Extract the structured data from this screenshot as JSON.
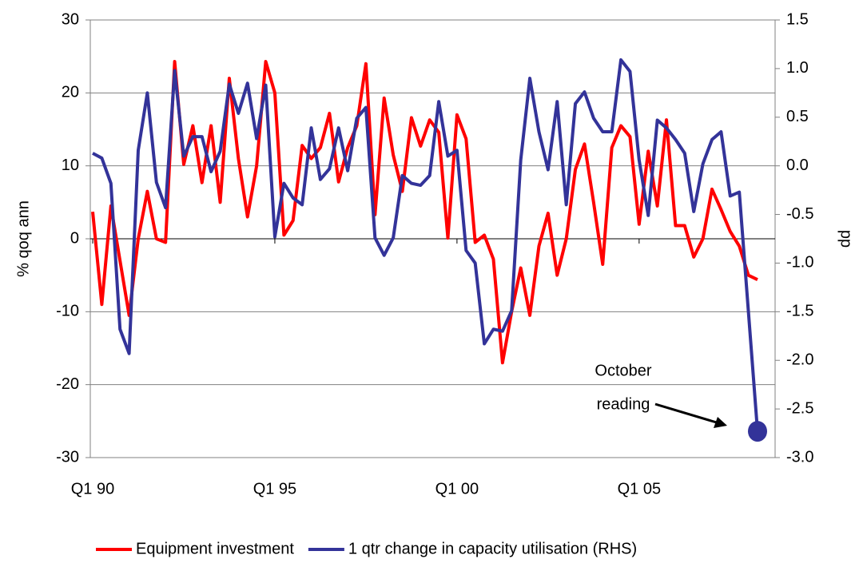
{
  "chart_data": {
    "type": "line",
    "ylabel": "% qoq ann",
    "y2label": "pp",
    "categories": [
      "Q1 90",
      null,
      null,
      null,
      null,
      null,
      null,
      null,
      null,
      null,
      null,
      null,
      null,
      null,
      null,
      null,
      null,
      null,
      null,
      null,
      "Q1 95",
      null,
      null,
      null,
      null,
      null,
      null,
      null,
      null,
      null,
      null,
      null,
      null,
      null,
      null,
      null,
      null,
      null,
      null,
      null,
      "Q1 00",
      null,
      null,
      null,
      null,
      null,
      null,
      null,
      null,
      null,
      null,
      null,
      null,
      null,
      null,
      null,
      null,
      null,
      null,
      null,
      "Q1 05",
      null,
      null,
      null,
      null,
      null,
      null,
      null,
      null,
      null,
      null,
      null,
      null,
      null
    ],
    "series": [
      {
        "name": "Equipment investment",
        "color": "#ff0000",
        "values": [
          3.7,
          -9,
          4.5,
          -3,
          -10.5,
          0,
          6.5,
          0,
          -0.5,
          24.3,
          10.2,
          15.5,
          7.7,
          15.5,
          5,
          22,
          11,
          3,
          10,
          24.3,
          20,
          0.5,
          2.5,
          12.8,
          11,
          12.5,
          17.2,
          7.8,
          12.5,
          15.5,
          24,
          3.3,
          19.3,
          11.5,
          6.5,
          16.6,
          12.7,
          16.3,
          14.6,
          0.1,
          17,
          13.7,
          -0.5,
          0.5,
          -2.8,
          -17,
          -10,
          -4,
          -10.5,
          -1,
          3.5,
          -5,
          0,
          9.5,
          13,
          5,
          -3.5,
          12.5,
          15.5,
          14,
          2,
          12,
          4.5,
          16.3,
          1.8,
          1.8,
          -2.5,
          0,
          6.8,
          4,
          1,
          -1,
          -5,
          -5.6
        ]
      },
      {
        "name": "1 qtr change in capacity utilisation (RHS)",
        "color": "#333399",
        "axis": "y2",
        "values": [
          0.13,
          0.08,
          -0.18,
          -1.68,
          -1.93,
          0.16,
          0.75,
          -0.17,
          -0.43,
          0.98,
          0.1,
          0.3,
          0.3,
          -0.06,
          0.15,
          0.84,
          0.54,
          0.85,
          0.28,
          0.83,
          -0.73,
          -0.18,
          -0.33,
          -0.4,
          0.39,
          -0.14,
          -0.03,
          0.39,
          -0.05,
          0.49,
          0.6,
          -0.74,
          -0.92,
          -0.74,
          -0.1,
          -0.18,
          -0.2,
          -0.1,
          0.66,
          0.1,
          0.16,
          -0.87,
          -1.0,
          -1.83,
          -1.68,
          -1.7,
          -1.49,
          0.06,
          0.9,
          0.35,
          -0.04,
          0.66,
          -0.4,
          0.64,
          0.76,
          0.49,
          0.35,
          0.35,
          1.09,
          0.97,
          0.06,
          -0.51,
          0.47,
          0.39,
          0.27,
          0.13,
          -0.47,
          0.02,
          0.27,
          0.35,
          -0.31,
          -0.27,
          -1.5,
          -2.73
        ]
      }
    ],
    "ylim": [
      -30,
      30
    ],
    "yticks": [
      -30,
      -20,
      -10,
      0,
      10,
      20,
      30
    ],
    "y2lim": [
      -3,
      1.5
    ],
    "y2ticks": [
      {
        "value": -3,
        "label": "-3.0"
      },
      -2.5,
      {
        "value": -2,
        "label": "-2.0"
      },
      -1.5,
      {
        "value": -1,
        "label": "-1.0"
      },
      -0.5,
      {
        "value": 0,
        "label": "0.0"
      },
      0.5,
      {
        "value": 1,
        "label": "1.0"
      },
      1.5
    ],
    "grid": true,
    "legend": "bottom",
    "annotation": [
      "October",
      "reading"
    ]
  }
}
